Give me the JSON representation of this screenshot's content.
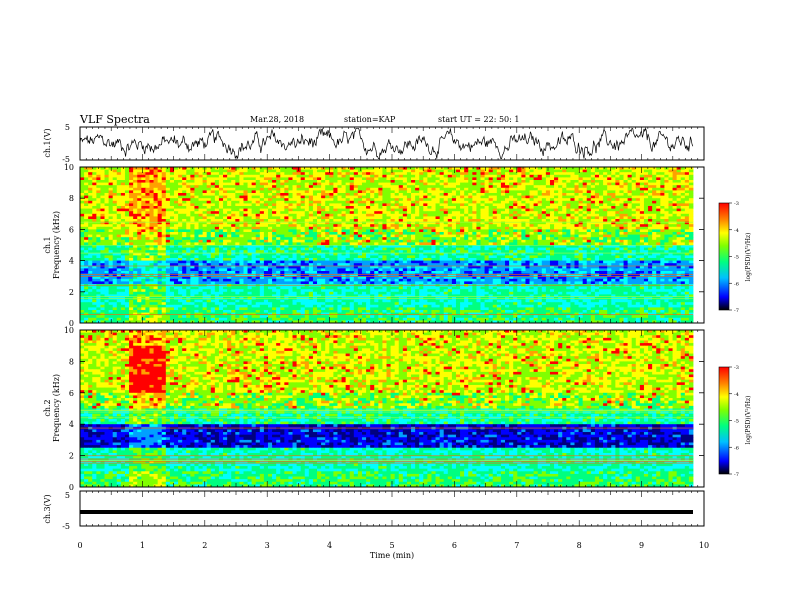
{
  "header": {
    "title": "VLF Spectra",
    "date": "Mar.28, 2018",
    "station": "station=KAP",
    "start_time": "start UT =  22: 50: 1"
  },
  "chart_data": [
    {
      "type": "line",
      "name": "ch1-waveform",
      "ylabel": "ch.1(V)",
      "ylim": [
        -5,
        5
      ],
      "yticks": [
        "5",
        "-5"
      ],
      "x_range_min": [
        0,
        9.8
      ],
      "color": "#000000"
    },
    {
      "type": "heatmap",
      "name": "ch1-spectrogram",
      "ylabel": "ch.1\nFrequency (kHz)",
      "ylim": [
        0,
        10
      ],
      "yticks": [
        "0",
        "2",
        "4",
        "6",
        "8",
        "10"
      ],
      "colorbar": {
        "label": "log(PSD)(V²/Hz)",
        "range": [
          -7,
          -3
        ],
        "ticks": [
          "-3",
          "-4",
          "-5",
          "-6",
          "-7"
        ]
      }
    },
    {
      "type": "heatmap",
      "name": "ch2-spectrogram",
      "ylabel": "ch.2\nFrequency (kHz)",
      "ylim": [
        0,
        10
      ],
      "yticks": [
        "0",
        "2",
        "4",
        "6",
        "8",
        "10"
      ],
      "colorbar": {
        "label": "log(PSD)(V²/Hz)",
        "range": [
          -7,
          -3
        ],
        "ticks": [
          "-3",
          "-4",
          "-5",
          "-6",
          "-7"
        ]
      }
    },
    {
      "type": "line",
      "name": "ch3-waveform",
      "ylabel": "ch.3(V)",
      "ylim": [
        -5,
        5
      ],
      "yticks": [
        "5",
        "-5"
      ],
      "constant_value": -1,
      "color": "#000000"
    }
  ],
  "xaxis": {
    "label": "Time (min)",
    "range": [
      0,
      10
    ],
    "ticks": [
      "0",
      "1",
      "2",
      "3",
      "4",
      "5",
      "6",
      "7",
      "8",
      "9",
      "10"
    ]
  },
  "colormap": [
    "#000080",
    "#0000ff",
    "#00a0ff",
    "#00ffff",
    "#00ff80",
    "#80ff00",
    "#ffff00",
    "#ffa000",
    "#ff0000"
  ]
}
